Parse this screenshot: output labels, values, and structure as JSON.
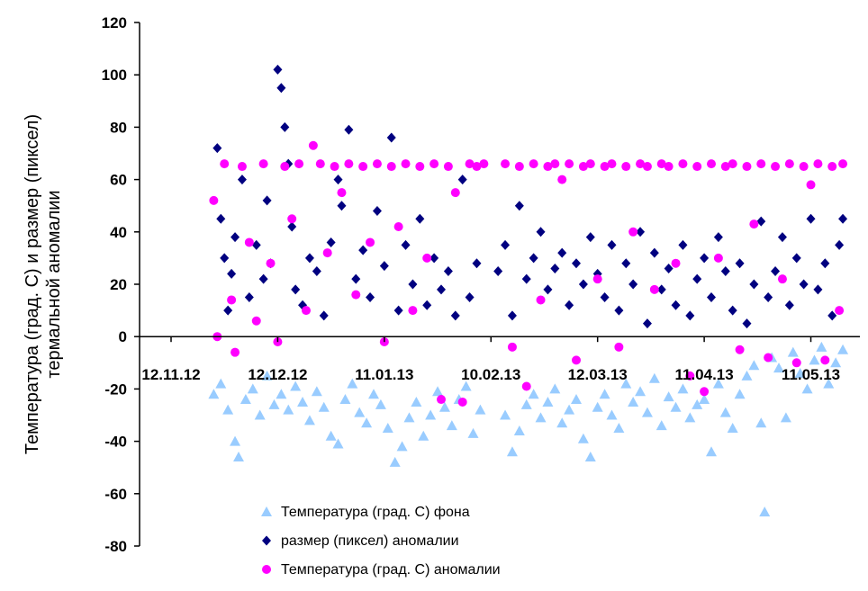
{
  "chart_data": {
    "type": "scatter",
    "title": "",
    "ylabel_lines": [
      "Температура (град. С) и размер (пиксел)",
      "термальной аномалии"
    ],
    "xlabel": "",
    "ylim": [
      -80,
      120
    ],
    "yticks": [
      120,
      100,
      80,
      60,
      40,
      20,
      0,
      -20,
      -40,
      -60,
      -80
    ],
    "xlim": [
      "2012-11-12",
      "2013-05-21"
    ],
    "xticks": [
      {
        "date": "2012-11-12",
        "label": "12.11.12"
      },
      {
        "date": "2012-12-12",
        "label": "12.12.12"
      },
      {
        "date": "2013-01-11",
        "label": "11.01.13"
      },
      {
        "date": "2013-02-10",
        "label": "10.02.13"
      },
      {
        "date": "2013-03-12",
        "label": "12.03.13"
      },
      {
        "date": "2013-04-11",
        "label": "11.04.13"
      },
      {
        "date": "2013-05-11",
        "label": "11.05.13"
      }
    ],
    "grid": false,
    "legend_position": "bottom-center",
    "series": [
      {
        "name": "Температура (град. С) фона",
        "marker": "triangle",
        "color": "#99ccff",
        "points": [
          [
            "2012-11-24",
            -22
          ],
          [
            "2012-11-26",
            -18
          ],
          [
            "2012-11-28",
            -28
          ],
          [
            "2012-11-30",
            -40
          ],
          [
            "2012-12-01",
            -46
          ],
          [
            "2012-12-03",
            -24
          ],
          [
            "2012-12-05",
            -20
          ],
          [
            "2012-12-07",
            -30
          ],
          [
            "2012-12-09",
            -15
          ],
          [
            "2012-12-11",
            -26
          ],
          [
            "2012-12-13",
            -22
          ],
          [
            "2012-12-15",
            -28
          ],
          [
            "2012-12-17",
            -19
          ],
          [
            "2012-12-19",
            -25
          ],
          [
            "2012-12-21",
            -32
          ],
          [
            "2012-12-23",
            -21
          ],
          [
            "2012-12-25",
            -27
          ],
          [
            "2012-12-27",
            -38
          ],
          [
            "2012-12-29",
            -41
          ],
          [
            "2012-12-31",
            -24
          ],
          [
            "2013-01-02",
            -18
          ],
          [
            "2013-01-04",
            -29
          ],
          [
            "2013-01-06",
            -33
          ],
          [
            "2013-01-08",
            -22
          ],
          [
            "2013-01-10",
            -26
          ],
          [
            "2013-01-12",
            -35
          ],
          [
            "2013-01-14",
            -48
          ],
          [
            "2013-01-16",
            -42
          ],
          [
            "2013-01-18",
            -31
          ],
          [
            "2013-01-20",
            -25
          ],
          [
            "2013-01-22",
            -38
          ],
          [
            "2013-01-24",
            -30
          ],
          [
            "2013-01-26",
            -21
          ],
          [
            "2013-01-28",
            -27
          ],
          [
            "2013-01-30",
            -34
          ],
          [
            "2013-02-01",
            -24
          ],
          [
            "2013-02-03",
            -19
          ],
          [
            "2013-02-05",
            -37
          ],
          [
            "2013-02-07",
            -28
          ],
          [
            "2013-02-14",
            -30
          ],
          [
            "2013-02-16",
            -44
          ],
          [
            "2013-02-18",
            -36
          ],
          [
            "2013-02-20",
            -26
          ],
          [
            "2013-02-22",
            -22
          ],
          [
            "2013-02-24",
            -31
          ],
          [
            "2013-02-26",
            -25
          ],
          [
            "2013-02-28",
            -20
          ],
          [
            "2013-03-02",
            -33
          ],
          [
            "2013-03-04",
            -28
          ],
          [
            "2013-03-06",
            -24
          ],
          [
            "2013-03-08",
            -39
          ],
          [
            "2013-03-10",
            -46
          ],
          [
            "2013-03-12",
            -27
          ],
          [
            "2013-03-14",
            -22
          ],
          [
            "2013-03-16",
            -30
          ],
          [
            "2013-03-18",
            -35
          ],
          [
            "2013-03-20",
            -18
          ],
          [
            "2013-03-22",
            -25
          ],
          [
            "2013-03-24",
            -21
          ],
          [
            "2013-03-26",
            -29
          ],
          [
            "2013-03-28",
            -16
          ],
          [
            "2013-03-30",
            -34
          ],
          [
            "2013-04-01",
            -23
          ],
          [
            "2013-04-03",
            -27
          ],
          [
            "2013-04-05",
            -20
          ],
          [
            "2013-04-07",
            -31
          ],
          [
            "2013-04-09",
            -26
          ],
          [
            "2013-04-11",
            -24
          ],
          [
            "2013-04-13",
            -44
          ],
          [
            "2013-04-15",
            -18
          ],
          [
            "2013-04-17",
            -29
          ],
          [
            "2013-04-19",
            -35
          ],
          [
            "2013-04-21",
            -22
          ],
          [
            "2013-04-23",
            -15
          ],
          [
            "2013-04-25",
            -11
          ],
          [
            "2013-04-27",
            -33
          ],
          [
            "2013-04-28",
            -67
          ],
          [
            "2013-04-30",
            -8
          ],
          [
            "2013-05-02",
            -12
          ],
          [
            "2013-05-04",
            -31
          ],
          [
            "2013-05-06",
            -6
          ],
          [
            "2013-05-08",
            -14
          ],
          [
            "2013-05-10",
            -20
          ],
          [
            "2013-05-12",
            -9
          ],
          [
            "2013-05-14",
            -4
          ],
          [
            "2013-05-16",
            -18
          ],
          [
            "2013-05-18",
            -10
          ],
          [
            "2013-05-20",
            -5
          ]
        ]
      },
      {
        "name": "размер (пиксел) аномалии",
        "marker": "diamond",
        "color": "#000080",
        "points": [
          [
            "2012-11-25",
            72
          ],
          [
            "2012-11-26",
            45
          ],
          [
            "2012-11-27",
            30
          ],
          [
            "2012-11-28",
            10
          ],
          [
            "2012-11-29",
            24
          ],
          [
            "2012-11-30",
            38
          ],
          [
            "2012-12-02",
            60
          ],
          [
            "2012-12-04",
            15
          ],
          [
            "2012-12-06",
            35
          ],
          [
            "2012-12-08",
            22
          ],
          [
            "2012-12-09",
            52
          ],
          [
            "2012-12-10",
            28
          ],
          [
            "2012-12-12",
            102
          ],
          [
            "2012-12-13",
            95
          ],
          [
            "2012-12-14",
            80
          ],
          [
            "2012-12-15",
            66
          ],
          [
            "2012-12-16",
            42
          ],
          [
            "2012-12-17",
            18
          ],
          [
            "2012-12-19",
            12
          ],
          [
            "2012-12-21",
            30
          ],
          [
            "2012-12-23",
            25
          ],
          [
            "2012-12-25",
            8
          ],
          [
            "2012-12-27",
            36
          ],
          [
            "2012-12-29",
            60
          ],
          [
            "2012-12-30",
            50
          ],
          [
            "2013-01-01",
            79
          ],
          [
            "2013-01-03",
            22
          ],
          [
            "2013-01-05",
            33
          ],
          [
            "2013-01-07",
            15
          ],
          [
            "2013-01-09",
            48
          ],
          [
            "2013-01-11",
            27
          ],
          [
            "2013-01-13",
            76
          ],
          [
            "2013-01-15",
            10
          ],
          [
            "2013-01-17",
            35
          ],
          [
            "2013-01-19",
            20
          ],
          [
            "2013-01-21",
            45
          ],
          [
            "2013-01-23",
            12
          ],
          [
            "2013-01-25",
            30
          ],
          [
            "2013-01-27",
            18
          ],
          [
            "2013-01-29",
            25
          ],
          [
            "2013-01-31",
            8
          ],
          [
            "2013-02-02",
            60
          ],
          [
            "2013-02-04",
            15
          ],
          [
            "2013-02-06",
            28
          ],
          [
            "2013-02-12",
            25
          ],
          [
            "2013-02-14",
            35
          ],
          [
            "2013-02-16",
            8
          ],
          [
            "2013-02-18",
            50
          ],
          [
            "2013-02-20",
            22
          ],
          [
            "2013-02-22",
            30
          ],
          [
            "2013-02-24",
            40
          ],
          [
            "2013-02-26",
            18
          ],
          [
            "2013-02-28",
            26
          ],
          [
            "2013-03-02",
            32
          ],
          [
            "2013-03-04",
            12
          ],
          [
            "2013-03-06",
            28
          ],
          [
            "2013-03-08",
            20
          ],
          [
            "2013-03-10",
            38
          ],
          [
            "2013-03-12",
            24
          ],
          [
            "2013-03-14",
            15
          ],
          [
            "2013-03-16",
            35
          ],
          [
            "2013-03-18",
            10
          ],
          [
            "2013-03-20",
            28
          ],
          [
            "2013-03-22",
            20
          ],
          [
            "2013-03-24",
            40
          ],
          [
            "2013-03-26",
            5
          ],
          [
            "2013-03-28",
            32
          ],
          [
            "2013-03-30",
            18
          ],
          [
            "2013-04-01",
            26
          ],
          [
            "2013-04-03",
            12
          ],
          [
            "2013-04-05",
            35
          ],
          [
            "2013-04-07",
            8
          ],
          [
            "2013-04-09",
            22
          ],
          [
            "2013-04-11",
            30
          ],
          [
            "2013-04-13",
            15
          ],
          [
            "2013-04-15",
            38
          ],
          [
            "2013-04-17",
            25
          ],
          [
            "2013-04-19",
            10
          ],
          [
            "2013-04-21",
            28
          ],
          [
            "2013-04-23",
            5
          ],
          [
            "2013-04-25",
            20
          ],
          [
            "2013-04-27",
            44
          ],
          [
            "2013-04-29",
            15
          ],
          [
            "2013-05-01",
            25
          ],
          [
            "2013-05-03",
            38
          ],
          [
            "2013-05-05",
            12
          ],
          [
            "2013-05-07",
            30
          ],
          [
            "2013-05-09",
            20
          ],
          [
            "2013-05-11",
            45
          ],
          [
            "2013-05-13",
            18
          ],
          [
            "2013-05-15",
            28
          ],
          [
            "2013-05-17",
            8
          ],
          [
            "2013-05-19",
            35
          ],
          [
            "2013-05-20",
            45
          ]
        ]
      },
      {
        "name": "Температура (град. С) аномалии",
        "marker": "circle",
        "color": "#ff00ff",
        "points": [
          [
            "2012-11-24",
            52
          ],
          [
            "2012-11-25",
            0
          ],
          [
            "2012-11-27",
            66
          ],
          [
            "2012-11-29",
            14
          ],
          [
            "2012-11-30",
            -6
          ],
          [
            "2012-12-02",
            65
          ],
          [
            "2012-12-04",
            36
          ],
          [
            "2012-12-06",
            6
          ],
          [
            "2012-12-08",
            66
          ],
          [
            "2012-12-10",
            28
          ],
          [
            "2012-12-12",
            -2
          ],
          [
            "2012-12-14",
            65
          ],
          [
            "2012-12-16",
            45
          ],
          [
            "2012-12-18",
            66
          ],
          [
            "2012-12-20",
            10
          ],
          [
            "2012-12-22",
            73
          ],
          [
            "2012-12-24",
            66
          ],
          [
            "2012-12-26",
            32
          ],
          [
            "2012-12-28",
            65
          ],
          [
            "2012-12-30",
            55
          ],
          [
            "2013-01-01",
            66
          ],
          [
            "2013-01-03",
            16
          ],
          [
            "2013-01-05",
            65
          ],
          [
            "2013-01-07",
            36
          ],
          [
            "2013-01-09",
            66
          ],
          [
            "2013-01-11",
            -2
          ],
          [
            "2013-01-13",
            65
          ],
          [
            "2013-01-15",
            42
          ],
          [
            "2013-01-17",
            66
          ],
          [
            "2013-01-19",
            10
          ],
          [
            "2013-01-21",
            65
          ],
          [
            "2013-01-23",
            30
          ],
          [
            "2013-01-25",
            66
          ],
          [
            "2013-01-27",
            -24
          ],
          [
            "2013-01-29",
            65
          ],
          [
            "2013-01-31",
            55
          ],
          [
            "2013-02-02",
            -25
          ],
          [
            "2013-02-04",
            66
          ],
          [
            "2013-02-06",
            65
          ],
          [
            "2013-02-08",
            66
          ],
          [
            "2013-02-14",
            66
          ],
          [
            "2013-02-16",
            -4
          ],
          [
            "2013-02-18",
            65
          ],
          [
            "2013-02-20",
            -19
          ],
          [
            "2013-02-22",
            66
          ],
          [
            "2013-02-24",
            14
          ],
          [
            "2013-02-26",
            65
          ],
          [
            "2013-02-28",
            66
          ],
          [
            "2013-03-02",
            60
          ],
          [
            "2013-03-04",
            66
          ],
          [
            "2013-03-06",
            -9
          ],
          [
            "2013-03-08",
            65
          ],
          [
            "2013-03-10",
            66
          ],
          [
            "2013-03-12",
            22
          ],
          [
            "2013-03-14",
            65
          ],
          [
            "2013-03-16",
            66
          ],
          [
            "2013-03-18",
            -4
          ],
          [
            "2013-03-20",
            65
          ],
          [
            "2013-03-22",
            40
          ],
          [
            "2013-03-24",
            66
          ],
          [
            "2013-03-26",
            65
          ],
          [
            "2013-03-28",
            18
          ],
          [
            "2013-03-30",
            66
          ],
          [
            "2013-04-01",
            65
          ],
          [
            "2013-04-03",
            28
          ],
          [
            "2013-04-05",
            66
          ],
          [
            "2013-04-07",
            -15
          ],
          [
            "2013-04-09",
            65
          ],
          [
            "2013-04-11",
            -21
          ],
          [
            "2013-04-13",
            66
          ],
          [
            "2013-04-15",
            30
          ],
          [
            "2013-04-17",
            65
          ],
          [
            "2013-04-19",
            66
          ],
          [
            "2013-04-21",
            -5
          ],
          [
            "2013-04-23",
            65
          ],
          [
            "2013-04-25",
            43
          ],
          [
            "2013-04-27",
            66
          ],
          [
            "2013-04-29",
            -8
          ],
          [
            "2013-05-01",
            65
          ],
          [
            "2013-05-03",
            22
          ],
          [
            "2013-05-05",
            66
          ],
          [
            "2013-05-07",
            -10
          ],
          [
            "2013-05-09",
            65
          ],
          [
            "2013-05-11",
            58
          ],
          [
            "2013-05-13",
            66
          ],
          [
            "2013-05-15",
            -9
          ],
          [
            "2013-05-17",
            65
          ],
          [
            "2013-05-19",
            10
          ],
          [
            "2013-05-20",
            66
          ]
        ]
      }
    ]
  }
}
